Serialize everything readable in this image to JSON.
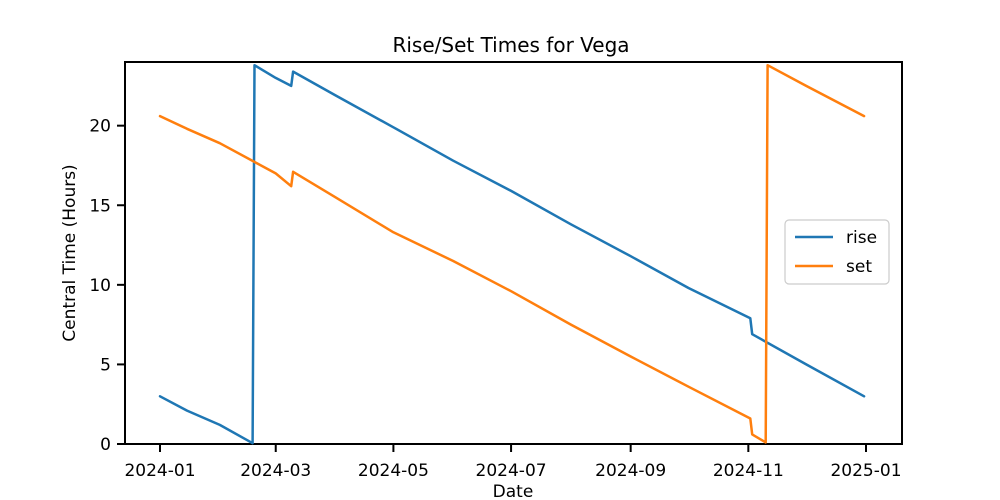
{
  "chart_data": {
    "type": "line",
    "title": "Rise/Set Times for Vega",
    "xlabel": "Date",
    "ylabel": "Central Time (Hours)",
    "xlim": [
      "2024-01-01",
      "2024-12-31"
    ],
    "ylim": [
      0,
      24
    ],
    "x_ticks": [
      "2024-01",
      "2024-03",
      "2024-05",
      "2024-07",
      "2024-09",
      "2024-11",
      "2025-01"
    ],
    "y_ticks": [
      0,
      5,
      10,
      15,
      20
    ],
    "legend_position": "center-right",
    "grid": false,
    "series": [
      {
        "name": "rise",
        "color": "#1f77b4",
        "points": [
          [
            "2024-01-01",
            3.0
          ],
          [
            "2024-01-15",
            2.1
          ],
          [
            "2024-02-01",
            1.2
          ],
          [
            "2024-02-18",
            0.05
          ],
          [
            "2024-02-19",
            23.8
          ],
          [
            "2024-03-01",
            23.0
          ],
          [
            "2024-03-09",
            22.5
          ],
          [
            "2024-03-10",
            23.4
          ],
          [
            "2024-04-01",
            21.9
          ],
          [
            "2024-05-01",
            19.9
          ],
          [
            "2024-06-01",
            17.8
          ],
          [
            "2024-07-01",
            15.9
          ],
          [
            "2024-08-01",
            13.8
          ],
          [
            "2024-09-01",
            11.8
          ],
          [
            "2024-10-01",
            9.8
          ],
          [
            "2024-11-02",
            7.9
          ],
          [
            "2024-11-03",
            6.9
          ],
          [
            "2024-12-01",
            5.0
          ],
          [
            "2024-12-31",
            3.0
          ]
        ]
      },
      {
        "name": "set",
        "color": "#ff7f0e",
        "points": [
          [
            "2024-01-01",
            20.6
          ],
          [
            "2024-01-15",
            19.8
          ],
          [
            "2024-02-01",
            18.9
          ],
          [
            "2024-03-01",
            17.0
          ],
          [
            "2024-03-09",
            16.2
          ],
          [
            "2024-03-10",
            17.1
          ],
          [
            "2024-04-01",
            15.5
          ],
          [
            "2024-05-01",
            13.3
          ],
          [
            "2024-06-01",
            11.5
          ],
          [
            "2024-07-01",
            9.6
          ],
          [
            "2024-08-01",
            7.5
          ],
          [
            "2024-09-01",
            5.5
          ],
          [
            "2024-10-01",
            3.6
          ],
          [
            "2024-11-02",
            1.6
          ],
          [
            "2024-11-03",
            0.6
          ],
          [
            "2024-11-10",
            0.1
          ],
          [
            "2024-11-11",
            23.8
          ],
          [
            "2024-12-01",
            22.5
          ],
          [
            "2024-12-31",
            20.6
          ]
        ]
      }
    ]
  }
}
